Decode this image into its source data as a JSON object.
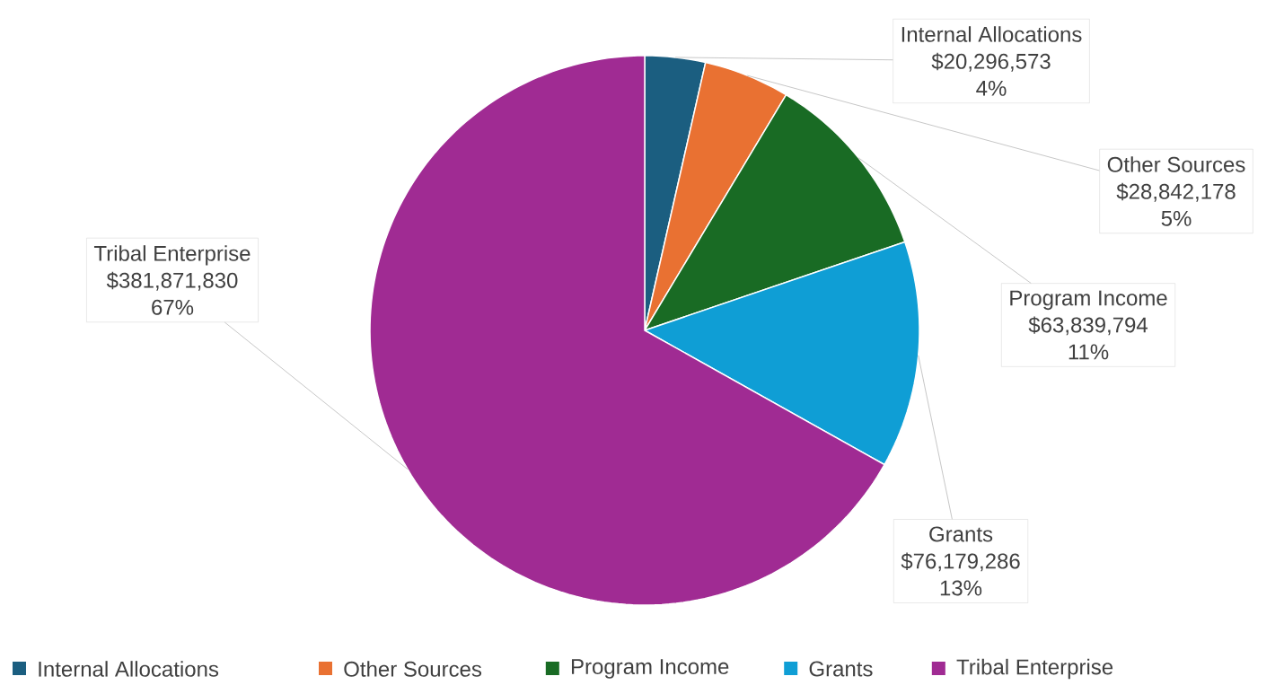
{
  "chart_data": {
    "type": "pie",
    "categories": [
      "Internal Allocations",
      "Other Sources",
      "Program Income",
      "Grants",
      "Tribal Enterprise"
    ],
    "values": [
      20296573,
      28842178,
      63839794,
      76179286,
      381871830
    ],
    "colors": [
      "#1b5e80",
      "#e97132",
      "#196b24",
      "#0f9ed5",
      "#a02b93"
    ],
    "value_labels": [
      "$20,296,573",
      "$28,842,178",
      "$63,839,794",
      "$76,179,286",
      "$381,871,830"
    ],
    "annotations": [
      "4%",
      "5%",
      "11%",
      "13%",
      "67%"
    ],
    "legend": "bottom"
  }
}
